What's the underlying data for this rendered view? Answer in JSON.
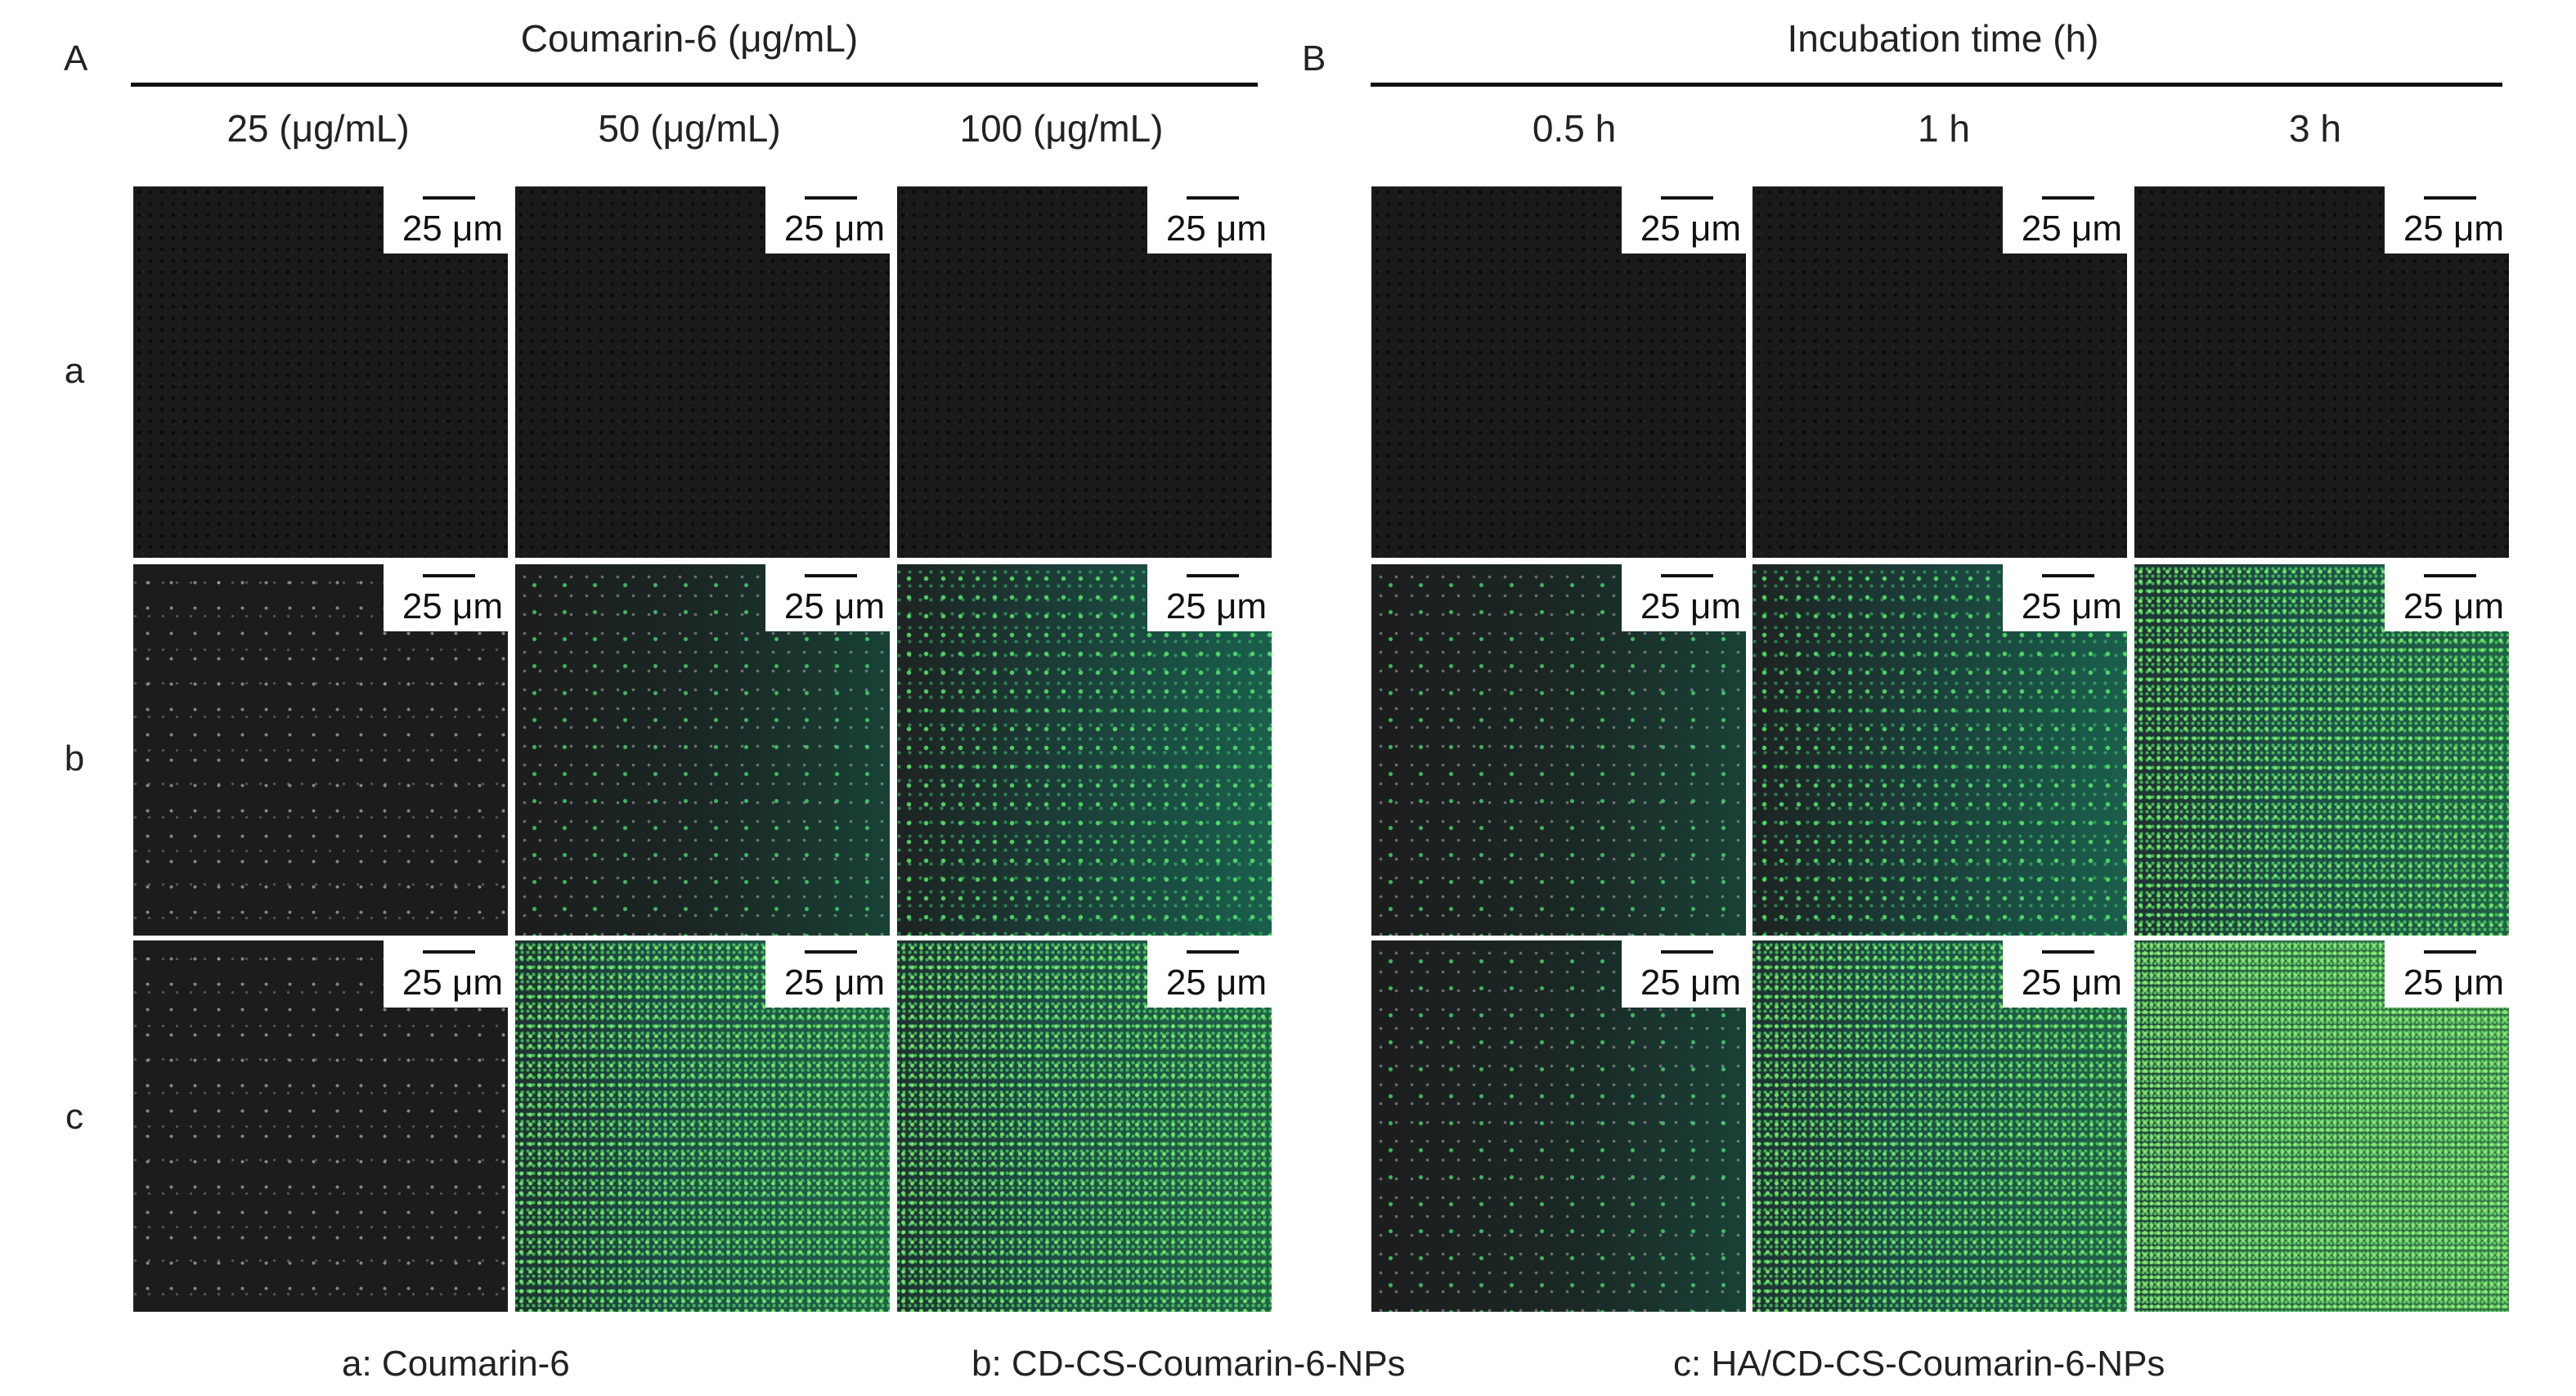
{
  "panels": {
    "A": {
      "letter": "A",
      "title": "Coumarin-6 (μg/mL)",
      "columns": [
        "25 (μg/mL)",
        "50 (μg/mL)",
        "100 (μg/mL)"
      ]
    },
    "B": {
      "letter": "B",
      "title": "Incubation time (h)",
      "columns": [
        "0.5 h",
        "1 h",
        "3 h"
      ]
    }
  },
  "rows": [
    "a",
    "b",
    "c"
  ],
  "scale_bar": "25 μm",
  "images": {
    "A": [
      [
        "lvl0",
        "lvl0",
        "lvl0"
      ],
      [
        "lvl1",
        "lvl2",
        "lvl3"
      ],
      [
        "lvl1",
        "lvl4",
        "lvl4"
      ]
    ],
    "B": [
      [
        "lvl0",
        "lvl0",
        "lvl0"
      ],
      [
        "lvl2",
        "lvl3",
        "lvl4"
      ],
      [
        "lvl2",
        "lvl4",
        "lvl5"
      ]
    ]
  },
  "legend": [
    "a: Coumarin-6",
    "b: CD-CS-Coumarin-6-NPs",
    "c: HA/CD-CS-Coumarin-6-NPs"
  ]
}
